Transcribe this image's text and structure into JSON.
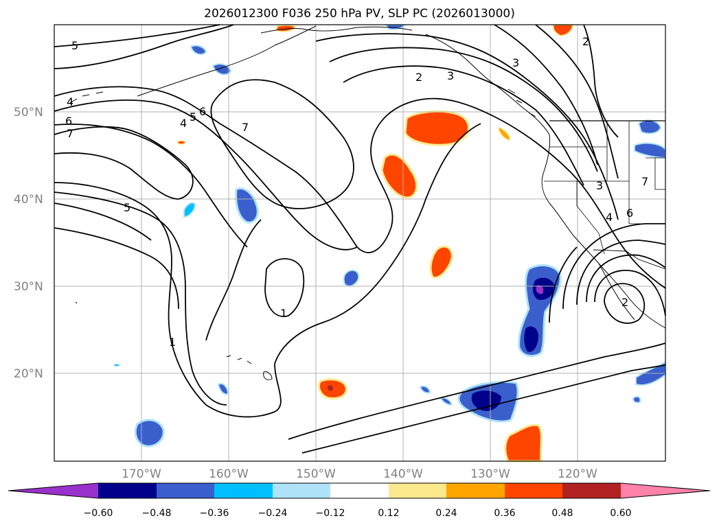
{
  "title": "2026012300 F036 250 hPa PV, SLP PC (2026013000)",
  "map": {
    "lat_labels": [
      "50°N",
      "40°N",
      "30°N",
      "20°N"
    ],
    "lon_labels": [
      "170°W",
      "160°W",
      "150°W",
      "140°W",
      "130°W",
      "120°W"
    ],
    "contour_labels": [
      "5",
      "4",
      "6",
      "7",
      "4",
      "5",
      "6",
      "7",
      "5",
      "2",
      "3",
      "3",
      "2",
      "1",
      "1",
      "3",
      "4",
      "6",
      "7",
      "2"
    ]
  },
  "colorbar": {
    "ticks": [
      "−0.60",
      "−0.48",
      "−0.36",
      "−0.24",
      "−0.12",
      "0.12",
      "0.24",
      "0.36",
      "0.48",
      "0.60"
    ],
    "colors": [
      "#9932CC",
      "#00008B",
      "#3A5FCD",
      "#00BFFF",
      "#AEE3FA",
      "#FFFFFF",
      "#FCE98E",
      "#FFA500",
      "#FF4500",
      "#B22222",
      "#FF82AB"
    ]
  }
}
